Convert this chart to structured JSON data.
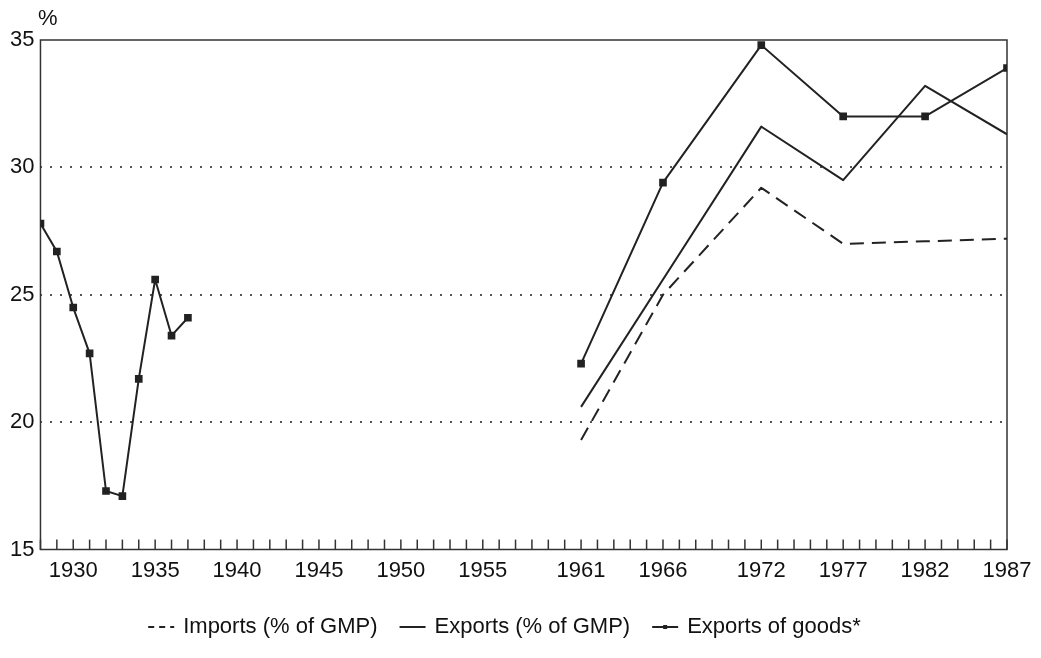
{
  "chart_data": {
    "type": "line",
    "ylabel": "%",
    "xlim": [
      1928,
      1987
    ],
    "ylim": [
      15,
      35
    ],
    "yticks": [
      15,
      20,
      25,
      30,
      35
    ],
    "xticks": [
      {
        "value": 1928,
        "label": null
      },
      {
        "value": 1929,
        "label": null
      },
      1930,
      {
        "value": 1931,
        "label": null
      },
      {
        "value": 1932,
        "label": null
      },
      {
        "value": 1933,
        "label": null
      },
      {
        "value": 1934,
        "label": null
      },
      1935,
      {
        "value": 1936,
        "label": null
      },
      {
        "value": 1937,
        "label": null
      },
      {
        "value": 1938,
        "label": null
      },
      {
        "value": 1939,
        "label": null
      },
      1940,
      {
        "value": 1941,
        "label": null
      },
      {
        "value": 1942,
        "label": null
      },
      {
        "value": 1943,
        "label": null
      },
      {
        "value": 1944,
        "label": null
      },
      1945,
      {
        "value": 1946,
        "label": null
      },
      {
        "value": 1947,
        "label": null
      },
      {
        "value": 1948,
        "label": null
      },
      {
        "value": 1949,
        "label": null
      },
      1950,
      {
        "value": 1951,
        "label": null
      },
      {
        "value": 1952,
        "label": null
      },
      {
        "value": 1953,
        "label": null
      },
      {
        "value": 1954,
        "label": null
      },
      1955,
      {
        "value": 1956,
        "label": null
      },
      {
        "value": 1957,
        "label": null
      },
      {
        "value": 1958,
        "label": null
      },
      {
        "value": 1959,
        "label": null
      },
      {
        "value": 1960,
        "label": null
      },
      1961,
      {
        "value": 1962,
        "label": null
      },
      {
        "value": 1963,
        "label": null
      },
      {
        "value": 1964,
        "label": null
      },
      {
        "value": 1965,
        "label": null
      },
      1966,
      {
        "value": 1967,
        "label": null
      },
      {
        "value": 1968,
        "label": null
      },
      {
        "value": 1969,
        "label": null
      },
      {
        "value": 1970,
        "label": null
      },
      {
        "value": 1971,
        "label": null
      },
      1972,
      {
        "value": 1973,
        "label": null
      },
      {
        "value": 1974,
        "label": null
      },
      {
        "value": 1975,
        "label": null
      },
      {
        "value": 1976,
        "label": null
      },
      1977,
      {
        "value": 1978,
        "label": null
      },
      {
        "value": 1979,
        "label": null
      },
      {
        "value": 1980,
        "label": null
      },
      {
        "value": 1981,
        "label": null
      },
      1982,
      {
        "value": 1983,
        "label": null
      },
      {
        "value": 1984,
        "label": null
      },
      {
        "value": 1985,
        "label": null
      },
      {
        "value": 1986,
        "label": null
      },
      1987
    ],
    "grid": "y",
    "legend": "bottom",
    "series": [
      {
        "name": "Imports (% of GMP)",
        "color": "#222222",
        "line_style": "dashed",
        "marker": "none",
        "x": [
          1961,
          1966,
          1972,
          1977,
          1982,
          1987
        ],
        "values": [
          19.3,
          25.0,
          29.2,
          27.0,
          27.1,
          27.2
        ]
      },
      {
        "name": "Exports (% of GMP)",
        "color": "#222222",
        "line_style": "solid",
        "marker": "none",
        "x": [
          1961,
          1972,
          1977,
          1982,
          1987
        ],
        "values": [
          20.6,
          31.6,
          29.5,
          33.2,
          31.3
        ]
      },
      {
        "name": "Exports of goods*",
        "color": "#222222",
        "line_style": "solid",
        "marker": "square",
        "x": [
          1928,
          1929,
          1930,
          1931,
          1932,
          1933,
          1934,
          1935,
          1936,
          1937,
          1938,
          1961,
          1966,
          1972,
          1977,
          1982,
          1987
        ],
        "values": [
          27.8,
          26.7,
          24.5,
          22.7,
          17.3,
          17.1,
          21.7,
          25.6,
          23.4,
          24.1,
          null,
          22.3,
          29.4,
          34.8,
          32.0,
          32.0,
          33.9
        ]
      }
    ]
  }
}
